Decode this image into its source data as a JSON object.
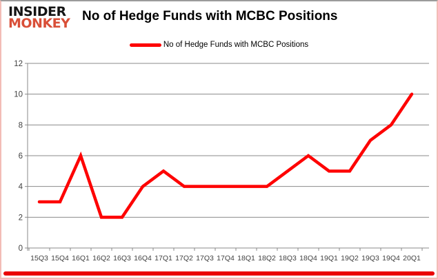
{
  "brand": {
    "line1": "INSIDER",
    "line2": "MONKEY",
    "line1_color": "#141414",
    "line2_color": "#d94f38"
  },
  "header": {
    "title": "No of Hedge Funds with MCBC Positions"
  },
  "legend": {
    "label": "No of Hedge Funds with MCBC Positions",
    "swatch_color": "#fe0000"
  },
  "chart_data": {
    "type": "line",
    "title": "No of Hedge Funds with MCBC Positions",
    "categories": [
      "15Q3",
      "15Q4",
      "16Q1",
      "16Q2",
      "16Q3",
      "16Q4",
      "17Q1",
      "17Q2",
      "17Q3",
      "17Q4",
      "18Q1",
      "18Q2",
      "18Q3",
      "18Q4",
      "19Q1",
      "19Q2",
      "19Q3",
      "19Q4",
      "20Q1"
    ],
    "series": [
      {
        "name": "No of Hedge Funds with MCBC Positions",
        "color": "#fe0000",
        "values": [
          3,
          3,
          6,
          2,
          2,
          4,
          5,
          4,
          4,
          4,
          4,
          4,
          5,
          6,
          5,
          5,
          7,
          8,
          10
        ]
      }
    ],
    "xlabel": "",
    "ylabel": "",
    "ylim": [
      0,
      12
    ],
    "yticks": [
      0,
      2,
      4,
      6,
      8,
      10,
      12
    ],
    "grid": true,
    "legend_position": "top",
    "axis_color": "#898989",
    "tick_label_color": "#3f3f3f"
  },
  "decor": {
    "bottom_bar_color": "#ea0404"
  }
}
